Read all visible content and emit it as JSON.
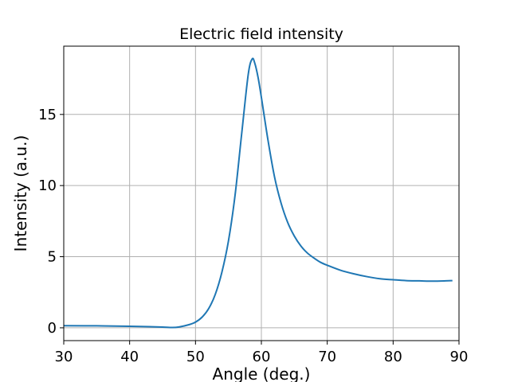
{
  "chart_data": {
    "type": "line",
    "title": "Electric field intensity",
    "xlabel": "Angle (deg.)",
    "ylabel": "Intensity (a.u.)",
    "xlim": [
      30,
      90
    ],
    "ylim": [
      -0.9,
      19.8
    ],
    "xticks": [
      30,
      40,
      50,
      60,
      70,
      80,
      90
    ],
    "yticks": [
      0,
      5,
      10,
      15
    ],
    "grid": true,
    "series_color": "#1f77b4",
    "series": [
      {
        "x": [
          30,
          35,
          40,
          43,
          45,
          46.5,
          47.5,
          49,
          50,
          51,
          52,
          53,
          54,
          55,
          56,
          57,
          58,
          58.6,
          59,
          59.5,
          60,
          61,
          62,
          63,
          64,
          65,
          66,
          67,
          68,
          69,
          70,
          72,
          74,
          76,
          78,
          80,
          82,
          84,
          86,
          88,
          89
        ],
        "y": [
          0.15,
          0.14,
          0.11,
          0.08,
          0.05,
          0.02,
          0.06,
          0.22,
          0.4,
          0.75,
          1.35,
          2.35,
          3.9,
          6.1,
          9.3,
          13.6,
          17.8,
          18.9,
          18.6,
          17.6,
          16.2,
          13.2,
          10.6,
          8.75,
          7.4,
          6.45,
          5.75,
          5.25,
          4.9,
          4.6,
          4.4,
          4.05,
          3.8,
          3.6,
          3.45,
          3.38,
          3.32,
          3.3,
          3.28,
          3.3,
          3.32
        ]
      }
    ]
  }
}
